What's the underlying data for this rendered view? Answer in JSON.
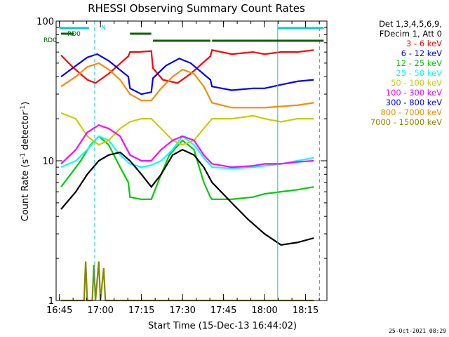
{
  "chart_data": {
    "type": "line",
    "title": "RHESSI Observing Summary Count Rates",
    "xlabel": "Start Time (15-Dec-13 16:44:02)",
    "ylabel": "Count Rate (s",
    "ylabel_sup": "-1",
    "ylabel_mid": " detector",
    "ylabel_end": ")",
    "yscale": "log",
    "ylim": [
      1,
      100
    ],
    "xlim_minutes": [
      16.73,
      18.38
    ],
    "y_ticks": [
      {
        "value": 1,
        "label": "1"
      },
      {
        "value": 10,
        "label": "10"
      },
      {
        "value": 100,
        "label": "100"
      }
    ],
    "x_ticks": [
      "16:45",
      "17:00",
      "17:15",
      "17:30",
      "17:45",
      "18:00",
      "18:15"
    ],
    "x_tick_hours": [
      16.75,
      17.0,
      17.25,
      17.5,
      17.75,
      18.0,
      18.25
    ],
    "legend_header": [
      "Det 1,3,4,5,6,9,",
      "FDecim 1, Att 0"
    ],
    "legend_placement": "right",
    "footer_date": "25-Oct-2021 08:29",
    "series": [
      {
        "name": "3 - 6 keV",
        "color": "#ff0000",
        "values": [
          [
            16.76,
            57
          ],
          [
            16.83,
            47
          ],
          [
            16.92,
            38
          ],
          [
            16.97,
            36
          ],
          [
            17.05,
            42
          ],
          [
            17.17,
            56
          ],
          [
            17.18,
            60
          ],
          [
            17.23,
            60
          ],
          [
            17.31,
            61
          ],
          [
            17.32,
            46
          ],
          [
            17.38,
            38
          ],
          [
            17.47,
            36
          ],
          [
            17.55,
            42
          ],
          [
            17.67,
            56
          ],
          [
            17.68,
            62
          ],
          [
            17.8,
            58
          ],
          [
            17.93,
            60
          ],
          [
            18.0,
            58
          ],
          [
            18.1,
            60
          ],
          [
            18.2,
            60
          ],
          [
            18.3,
            62
          ]
        ]
      },
      {
        "name": "6 - 12 keV",
        "color": "#0000ff",
        "values": [
          [
            16.76,
            40
          ],
          [
            16.83,
            46
          ],
          [
            16.92,
            55
          ],
          [
            16.98,
            58
          ],
          [
            17.05,
            52
          ],
          [
            17.17,
            40
          ],
          [
            17.18,
            33
          ],
          [
            17.25,
            30
          ],
          [
            17.31,
            31
          ],
          [
            17.32,
            39
          ],
          [
            17.4,
            48
          ],
          [
            17.48,
            54
          ],
          [
            17.55,
            50
          ],
          [
            17.67,
            38
          ],
          [
            17.68,
            34
          ],
          [
            17.8,
            32
          ],
          [
            17.93,
            33
          ],
          [
            18.0,
            33
          ],
          [
            18.1,
            35
          ],
          [
            18.2,
            37
          ],
          [
            18.3,
            38
          ]
        ]
      },
      {
        "name": "12 - 25 keV",
        "color": "#00cc00",
        "values": [
          [
            16.76,
            6.5
          ],
          [
            16.8,
            7.5
          ],
          [
            16.88,
            10
          ],
          [
            16.94,
            13
          ],
          [
            16.99,
            15
          ],
          [
            17.05,
            13
          ],
          [
            17.12,
            9
          ],
          [
            17.17,
            7
          ],
          [
            17.18,
            5.5
          ],
          [
            17.25,
            5.3
          ],
          [
            17.31,
            5.3
          ],
          [
            17.37,
            8
          ],
          [
            17.42,
            11
          ],
          [
            17.5,
            14
          ],
          [
            17.57,
            12
          ],
          [
            17.63,
            7
          ],
          [
            17.67,
            5.5
          ],
          [
            17.68,
            5.3
          ],
          [
            17.8,
            5.3
          ],
          [
            17.93,
            5.5
          ],
          [
            18.0,
            5.8
          ],
          [
            18.1,
            6
          ],
          [
            18.2,
            6.2
          ],
          [
            18.3,
            6.5
          ]
        ]
      },
      {
        "name": "25 - 50 keV",
        "color": "#00ffff",
        "values": [
          [
            16.76,
            9
          ],
          [
            16.85,
            10
          ],
          [
            16.92,
            12
          ],
          [
            16.99,
            15
          ],
          [
            17.05,
            14
          ],
          [
            17.12,
            11
          ],
          [
            17.18,
            9.5
          ],
          [
            17.25,
            9
          ],
          [
            17.31,
            9.3
          ],
          [
            17.37,
            10
          ],
          [
            17.44,
            12
          ],
          [
            17.5,
            15
          ],
          [
            17.57,
            13
          ],
          [
            17.63,
            10.5
          ],
          [
            17.68,
            9
          ],
          [
            17.8,
            8.8
          ],
          [
            17.93,
            9
          ],
          [
            18.0,
            9.2
          ],
          [
            18.1,
            9.5
          ],
          [
            18.2,
            10
          ],
          [
            18.3,
            10.5
          ]
        ]
      },
      {
        "name": "50 - 100 keV",
        "color": "#cccc00",
        "values": [
          [
            16.76,
            22
          ],
          [
            16.85,
            20
          ],
          [
            16.92,
            15
          ],
          [
            16.99,
            13
          ],
          [
            17.05,
            14
          ],
          [
            17.12,
            17
          ],
          [
            17.18,
            19
          ],
          [
            17.25,
            20
          ],
          [
            17.31,
            20
          ],
          [
            17.37,
            17
          ],
          [
            17.44,
            14
          ],
          [
            17.5,
            13
          ],
          [
            17.57,
            14
          ],
          [
            17.63,
            17
          ],
          [
            17.68,
            20
          ],
          [
            17.8,
            20
          ],
          [
            17.93,
            21
          ],
          [
            18.0,
            20
          ],
          [
            18.1,
            19
          ],
          [
            18.2,
            20
          ],
          [
            18.3,
            20
          ]
        ]
      },
      {
        "name": "100 - 300 keV",
        "color": "#ff00ff",
        "values": [
          [
            16.76,
            9.5
          ],
          [
            16.85,
            12
          ],
          [
            16.92,
            16
          ],
          [
            16.99,
            18
          ],
          [
            17.05,
            17
          ],
          [
            17.12,
            15
          ],
          [
            17.18,
            11
          ],
          [
            17.25,
            10
          ],
          [
            17.31,
            10
          ],
          [
            17.37,
            12
          ],
          [
            17.44,
            14
          ],
          [
            17.5,
            15
          ],
          [
            17.57,
            14
          ],
          [
            17.63,
            11
          ],
          [
            17.68,
            9.5
          ],
          [
            17.8,
            9
          ],
          [
            17.93,
            9.2
          ],
          [
            18.0,
            9.5
          ],
          [
            18.1,
            9.5
          ],
          [
            18.2,
            9.8
          ],
          [
            18.3,
            10
          ]
        ]
      },
      {
        "name": "300 - 800 keV",
        "color": "#0000ff",
        "values": []
      },
      {
        "name": "800 - 7000 keV",
        "color": "#ff8800",
        "values": [
          [
            16.76,
            34
          ],
          [
            16.85,
            40
          ],
          [
            16.92,
            47
          ],
          [
            16.99,
            50
          ],
          [
            17.05,
            45
          ],
          [
            17.12,
            38
          ],
          [
            17.18,
            30
          ],
          [
            17.25,
            27
          ],
          [
            17.31,
            27
          ],
          [
            17.37,
            33
          ],
          [
            17.44,
            40
          ],
          [
            17.5,
            45
          ],
          [
            17.57,
            42
          ],
          [
            17.63,
            34
          ],
          [
            17.68,
            26
          ],
          [
            17.8,
            24
          ],
          [
            17.93,
            24
          ],
          [
            18.0,
            24
          ],
          [
            18.1,
            24.5
          ],
          [
            18.2,
            25
          ],
          [
            18.3,
            26
          ]
        ]
      },
      {
        "name": "7000 - 15000 keV",
        "color": "#888800",
        "values": [
          [
            16.76,
            1
          ],
          [
            16.9,
            1
          ],
          [
            16.91,
            1.9
          ],
          [
            16.92,
            1
          ],
          [
            16.95,
            1
          ],
          [
            16.96,
            1.8
          ],
          [
            16.97,
            1
          ],
          [
            16.99,
            1.9
          ],
          [
            17.0,
            1
          ],
          [
            17.02,
            1.7
          ],
          [
            17.03,
            1
          ],
          [
            18.3,
            1
          ]
        ]
      }
    ],
    "black_series_values": [
      [
        16.76,
        4.5
      ],
      [
        16.85,
        6
      ],
      [
        16.92,
        8
      ],
      [
        16.99,
        10
      ],
      [
        17.05,
        11
      ],
      [
        17.12,
        11.5
      ],
      [
        17.18,
        10
      ],
      [
        17.25,
        8
      ],
      [
        17.31,
        6.5
      ],
      [
        17.37,
        8
      ],
      [
        17.44,
        11
      ],
      [
        17.5,
        12
      ],
      [
        17.57,
        11
      ],
      [
        17.63,
        9
      ],
      [
        17.68,
        7
      ],
      [
        17.8,
        5
      ],
      [
        17.9,
        3.8
      ],
      [
        18.0,
        3
      ],
      [
        18.1,
        2.5
      ],
      [
        18.2,
        2.6
      ],
      [
        18.3,
        2.8
      ]
    ],
    "annotations": [
      {
        "text": "N",
        "color": "#00cccc"
      },
      {
        "text": "RD0",
        "color": "#006600"
      },
      {
        "text": "RD0",
        "color": "#006600"
      }
    ],
    "vertical_markers_hours": [
      {
        "hour": 16.965,
        "style": "dashed",
        "color": "#00cccc"
      },
      {
        "hour": 18.08,
        "style": "solid",
        "color": "#00cccc"
      },
      {
        "hour": 18.335,
        "style": "dashed",
        "color": "#00cccc"
      }
    ],
    "top_bars": [
      {
        "color": "#00cccc",
        "start": 16.75,
        "end": 16.93,
        "level": "upper"
      },
      {
        "color": "#00cccc",
        "start": 18.08,
        "end": 18.36,
        "level": "upper"
      },
      {
        "color": "#006600",
        "start": 16.76,
        "end": 16.84,
        "level": "middle"
      },
      {
        "color": "#006600",
        "start": 17.18,
        "end": 17.31,
        "level": "middle"
      },
      {
        "color": "#006600",
        "start": 17.32,
        "end": 17.67,
        "level": "lower"
      },
      {
        "color": "#006600",
        "start": 17.68,
        "end": 18.36,
        "level": "lower"
      }
    ]
  }
}
